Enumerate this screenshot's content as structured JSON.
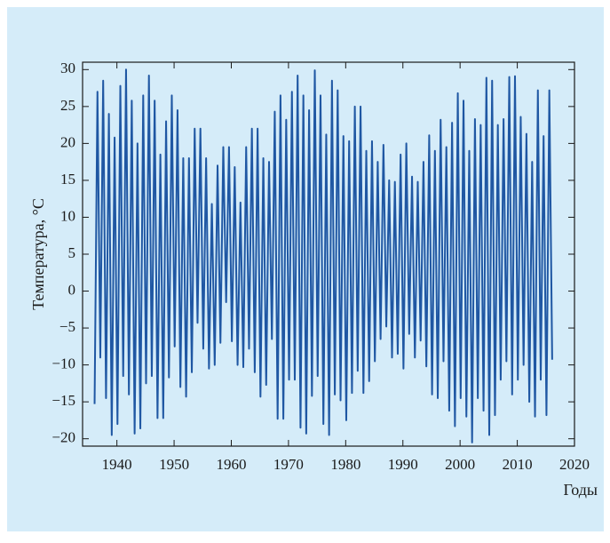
{
  "chart_data": {
    "type": "line",
    "y_label": "Температура, °C",
    "x_label": "Годы",
    "color": "#1f57a3",
    "xlim": [
      1934,
      2020
    ],
    "ylim": [
      -21,
      31
    ],
    "xticks": [
      1940,
      1950,
      1960,
      1970,
      1980,
      1990,
      2000,
      2010,
      2020
    ],
    "yticks": [
      {
        "value": -20,
        "label": "−20"
      },
      {
        "value": -15,
        "label": "−15"
      },
      {
        "value": -10,
        "label": "−10"
      },
      {
        "value": -5,
        "label": "−5"
      },
      0,
      5,
      10,
      15,
      20,
      25,
      30
    ],
    "x": [
      1936.1,
      1936.6,
      1937.1,
      1937.6,
      1938.1,
      1938.6,
      1939.1,
      1939.6,
      1940.1,
      1940.6,
      1941.1,
      1941.6,
      1942.1,
      1942.6,
      1943.1,
      1943.6,
      1944.1,
      1944.6,
      1945.1,
      1945.6,
      1946.1,
      1946.6,
      1947.1,
      1947.6,
      1948.1,
      1948.6,
      1949.1,
      1949.6,
      1950.1,
      1950.6,
      1951.1,
      1951.6,
      1952.1,
      1952.6,
      1953.1,
      1953.6,
      1954.1,
      1954.6,
      1955.1,
      1955.6,
      1956.1,
      1956.6,
      1957.1,
      1957.6,
      1958.1,
      1958.6,
      1959.1,
      1959.6,
      1960.1,
      1960.6,
      1961.1,
      1961.6,
      1962.1,
      1962.6,
      1963.1,
      1963.6,
      1964.1,
      1964.6,
      1965.1,
      1965.6,
      1966.1,
      1966.6,
      1967.1,
      1967.6,
      1968.1,
      1968.6,
      1969.1,
      1969.6,
      1970.1,
      1970.6,
      1971.1,
      1971.6,
      1972.1,
      1972.6,
      1973.1,
      1973.6,
      1974.1,
      1974.6,
      1975.1,
      1975.6,
      1976.1,
      1976.6,
      1977.1,
      1977.6,
      1978.1,
      1978.6,
      1979.1,
      1979.6,
      1980.1,
      1980.6,
      1981.1,
      1981.6,
      1982.1,
      1982.6,
      1983.1,
      1983.6,
      1984.1,
      1984.6,
      1985.1,
      1985.6,
      1986.1,
      1986.6,
      1987.1,
      1987.6,
      1988.1,
      1988.6,
      1989.1,
      1989.6,
      1990.1,
      1990.6,
      1991.1,
      1991.6,
      1992.1,
      1992.6,
      1993.1,
      1993.6,
      1994.1,
      1994.6,
      1995.1,
      1995.6,
      1996.1,
      1996.6,
      1997.1,
      1997.6,
      1998.1,
      1998.6,
      1999.1,
      1999.6,
      2000.1,
      2000.6,
      2001.1,
      2001.6,
      2002.1,
      2002.6,
      2003.1,
      2003.6,
      2004.1,
      2004.6,
      2005.1,
      2005.6,
      2006.1,
      2006.6,
      2007.1,
      2007.6,
      2008.1,
      2008.6,
      2009.1,
      2009.6,
      2010.1,
      2010.6,
      2011.1,
      2011.6,
      2012.1,
      2012.6,
      2013.1,
      2013.6,
      2014.1,
      2014.6,
      2015.1,
      2015.6,
      2016.1
    ],
    "values": [
      -15.3,
      27,
      -9,
      28.5,
      -14.5,
      24,
      -19.5,
      20.8,
      -18,
      27.8,
      -11.5,
      30,
      -14,
      25.8,
      -19.3,
      20,
      -18.6,
      26.5,
      -12.5,
      29.2,
      -11.5,
      25.8,
      -17.2,
      18.5,
      -17.2,
      23,
      -11.7,
      26.5,
      -7.5,
      24.5,
      -13,
      18,
      -14.3,
      18,
      -11,
      22,
      -4.3,
      22,
      -7.8,
      18,
      -10.5,
      11.8,
      -10,
      17,
      -7,
      19.5,
      -1.5,
      19.5,
      -6.8,
      16.8,
      -10,
      12,
      -10.3,
      19.5,
      -7.8,
      22,
      -11,
      22,
      -14.3,
      18,
      -12.7,
      17.5,
      -6.5,
      24.3,
      -17.3,
      26.5,
      -17.3,
      23.2,
      -12,
      27,
      -12,
      29.2,
      -18.5,
      26.5,
      -19.3,
      24.5,
      -14.2,
      29.9,
      -11.5,
      26.5,
      -18,
      21.2,
      -19.5,
      28.5,
      -14,
      27.2,
      -14.8,
      21,
      -17.5,
      20.3,
      -13.8,
      25,
      -10.8,
      25,
      -13.8,
      19,
      -12.2,
      20.3,
      -9.5,
      17.5,
      -6.5,
      19.8,
      -4.8,
      15,
      -9,
      14.8,
      -8.5,
      18.5,
      -10.5,
      20,
      -5.8,
      15.5,
      -9,
      14.8,
      -6.7,
      17.5,
      -10.2,
      21.1,
      -14,
      19,
      -14.5,
      23.2,
      -9.5,
      19.5,
      -16.2,
      22.8,
      -18.3,
      26.8,
      -14.5,
      25.8,
      -17,
      19,
      -20.5,
      23.3,
      -14.5,
      22.5,
      -16.2,
      28.9,
      -19.5,
      28.5,
      -16.8,
      22.5,
      -12,
      23.3,
      -9.5,
      29,
      -14,
      29.1,
      -12,
      23.6,
      -10,
      21.3,
      -15,
      17.5,
      -17,
      27.2,
      -12,
      21,
      -16.8,
      27.2,
      -9.3
    ]
  }
}
